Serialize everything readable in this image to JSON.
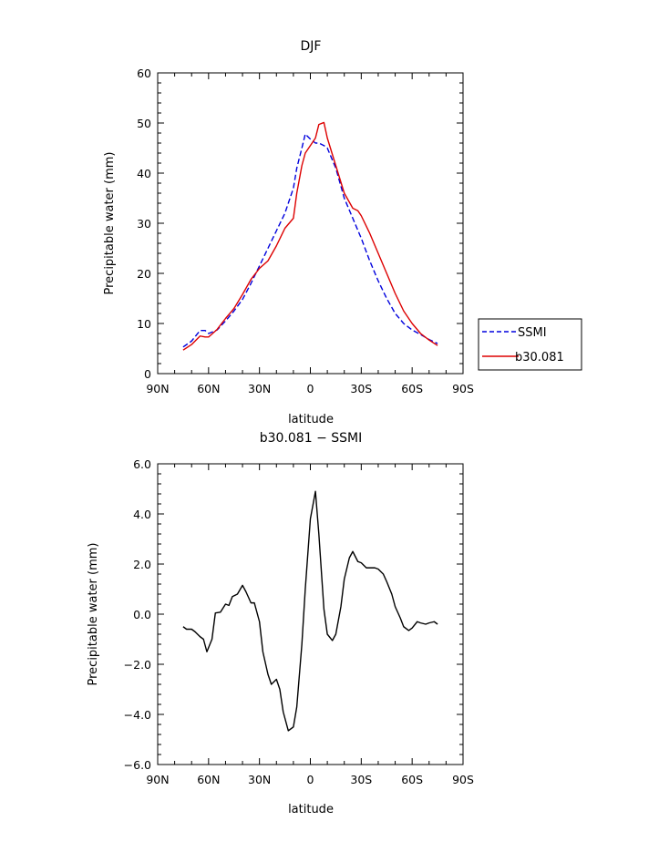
{
  "chart_data": [
    {
      "type": "line",
      "title": "DJF",
      "xlabel": "latitude",
      "ylabel": "Precipitable water (mm)",
      "xlim": [
        90,
        -90
      ],
      "ylim": [
        0,
        60
      ],
      "xticks": [
        90,
        60,
        30,
        0,
        -30,
        -60,
        -90
      ],
      "xtick_labels": [
        "90N",
        "60N",
        "30N",
        "0",
        "30S",
        "60S",
        "90S"
      ],
      "yticks": [
        0,
        10,
        20,
        30,
        40,
        50,
        60
      ],
      "ytick_labels": [
        "0",
        "10",
        "20",
        "30",
        "40",
        "50",
        "60"
      ],
      "legend_position": "right",
      "series": [
        {
          "name": "SSMI",
          "color": "#0000dd",
          "dash": "dashed",
          "x": [
            75,
            70,
            65,
            62,
            60,
            55,
            50,
            45,
            40,
            35,
            30,
            25,
            20,
            15,
            10,
            8,
            5,
            3,
            0,
            -3,
            -5,
            -8,
            -10,
            -15,
            -20,
            -25,
            -30,
            -35,
            -40,
            -45,
            -50,
            -55,
            -60,
            -65,
            -70,
            -75
          ],
          "y": [
            5.3,
            6.5,
            8.6,
            8.6,
            8.0,
            8.7,
            10.5,
            12.5,
            14.8,
            18.0,
            21.5,
            25.0,
            28.5,
            32.0,
            37.0,
            41.0,
            45.0,
            47.8,
            46.8,
            46.0,
            46.0,
            45.5,
            45.0,
            41.0,
            35.0,
            31.0,
            27.0,
            22.5,
            18.5,
            15.0,
            12.0,
            10.0,
            8.7,
            7.8,
            6.8,
            6.0
          ]
        },
        {
          "name": "b30.081",
          "color": "#dd0000",
          "dash": "solid",
          "x": [
            75,
            70,
            65,
            62,
            60,
            55,
            50,
            45,
            40,
            35,
            30,
            25,
            20,
            15,
            10,
            8,
            5,
            3,
            0,
            -3,
            -5,
            -8,
            -10,
            -15,
            -20,
            -25,
            -28,
            -30,
            -35,
            -40,
            -45,
            -50,
            -55,
            -60,
            -65,
            -70,
            -75
          ],
          "y": [
            4.7,
            5.8,
            7.5,
            7.3,
            7.3,
            8.8,
            11.0,
            13.0,
            15.8,
            18.8,
            21.0,
            22.5,
            25.5,
            29.0,
            31.0,
            36.0,
            41.5,
            44.0,
            45.5,
            47.0,
            49.7,
            50.1,
            47.0,
            41.5,
            36.0,
            33.0,
            32.5,
            31.5,
            28.0,
            24.0,
            20.0,
            16.0,
            12.5,
            10.0,
            8.0,
            6.7,
            5.6
          ]
        }
      ]
    },
    {
      "type": "line",
      "title": "b30.081 − SSMI",
      "xlabel": "latitude",
      "ylabel": "Precipitable water (mm)",
      "xlim": [
        90,
        -90
      ],
      "ylim": [
        -6.0,
        6.0
      ],
      "xticks": [
        90,
        60,
        30,
        0,
        -30,
        -60,
        -90
      ],
      "xtick_labels": [
        "90N",
        "60N",
        "30N",
        "0",
        "30S",
        "60S",
        "90S"
      ],
      "yticks": [
        -6,
        -4,
        -2,
        0,
        2,
        4,
        6
      ],
      "ytick_labels": [
        "−6.0",
        "−4.0",
        "−2.0",
        "0.0",
        "2.0",
        "4.0",
        "6.0"
      ],
      "series": [
        {
          "color": "#000000",
          "dash": "solid",
          "x": [
            75,
            73,
            70,
            68,
            65,
            63,
            61,
            58,
            56,
            53,
            50,
            48,
            46,
            43,
            40,
            38,
            35,
            33,
            30,
            28,
            25,
            23,
            20,
            18,
            16,
            13,
            10,
            8,
            5,
            3,
            0,
            -3,
            -5,
            -8,
            -10,
            -13,
            -15,
            -18,
            -20,
            -23,
            -25,
            -28,
            -30,
            -33,
            -35,
            -38,
            -40,
            -43,
            -45,
            -48,
            -50,
            -53,
            -55,
            -58,
            -60,
            -63,
            -65,
            -68,
            -70,
            -73,
            -75
          ],
          "y": [
            -0.5,
            -0.6,
            -0.6,
            -0.7,
            -0.9,
            -1.0,
            -1.5,
            -1.0,
            0.05,
            0.08,
            0.4,
            0.35,
            0.7,
            0.8,
            1.15,
            0.9,
            0.45,
            0.45,
            -0.3,
            -1.5,
            -2.4,
            -2.8,
            -2.6,
            -3.0,
            -3.9,
            -4.65,
            -4.5,
            -3.7,
            -1.2,
            1.0,
            3.8,
            4.9,
            3.2,
            0.2,
            -0.8,
            -1.05,
            -0.8,
            0.3,
            1.4,
            2.25,
            2.5,
            2.1,
            2.05,
            1.85,
            1.85,
            1.85,
            1.8,
            1.6,
            1.3,
            0.8,
            0.3,
            -0.15,
            -0.5,
            -0.65,
            -0.55,
            -0.3,
            -0.35,
            -0.4,
            -0.35,
            -0.3,
            -0.4
          ]
        }
      ]
    }
  ]
}
